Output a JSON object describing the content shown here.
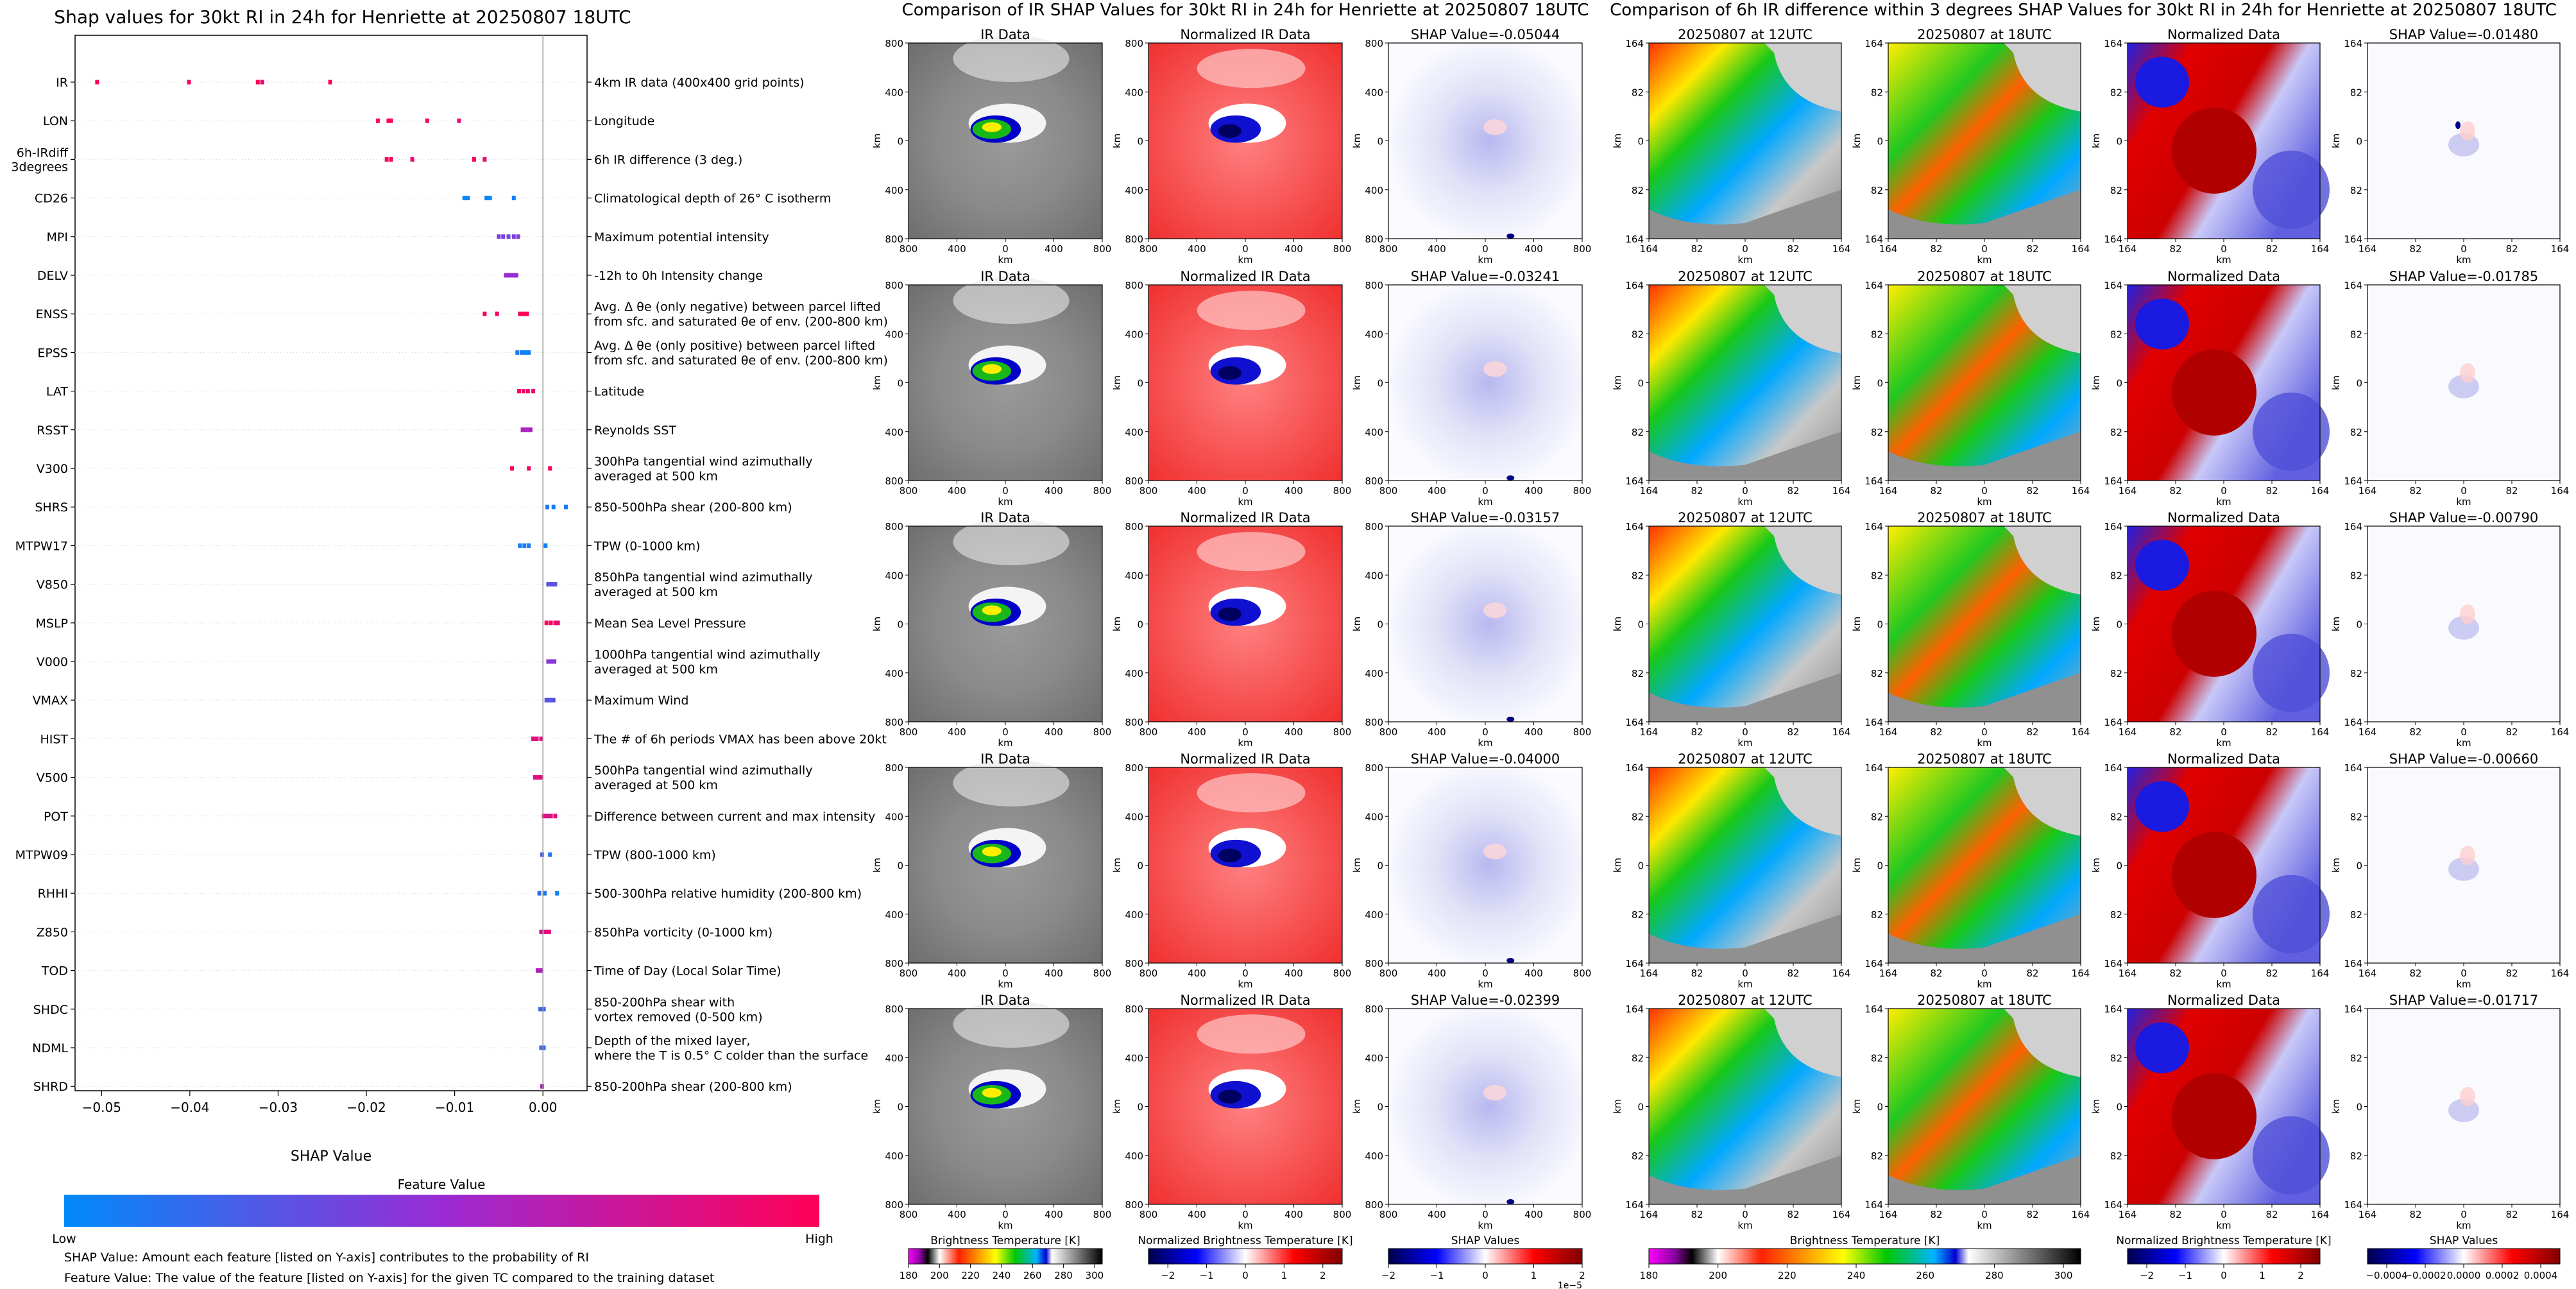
{
  "left_title": "Shap values for 30kt RI in 24h for Henriette at 20250807 18UTC",
  "ir_title": "Comparison of IR SHAP Values for 30kt RI in 24h for Henriette at 20250807 18UTC",
  "diff_title": "Comparison of 6h IR difference within 3 degrees SHAP Values for 30kt RI in 24h for Henriette at 20250807 18UTC",
  "colorbar": {
    "title": "Feature Value",
    "low": "Low",
    "high": "High",
    "low_color": "#008afa",
    "mid_color": "#9a2bd4",
    "high_color": "#ff0057"
  },
  "notes": [
    "SHAP Value: Amount each feature [listed on Y-axis] contributes to the probability of RI",
    "Feature Value: The value of the feature [listed on Y-axis] for the given TC compared to the training dataset"
  ],
  "chart_data": {
    "type": "scatter",
    "title": "Shap values for 30kt RI in 24h for Henriette at 20250807 18UTC",
    "xlabel": "SHAP Value",
    "xlim": [
      -0.053,
      0.005
    ],
    "xticks": [
      -0.05,
      -0.04,
      -0.03,
      -0.02,
      -0.01,
      0.0
    ],
    "xtick_labels": [
      "−0.05",
      "−0.04",
      "−0.03",
      "−0.02",
      "−0.01",
      "0.00"
    ],
    "features": [
      {
        "name": "IR",
        "desc": [
          "4km IR data (400x400 grid points)"
        ],
        "points": [
          [
            -0.0505,
            1
          ],
          [
            -0.0401,
            0.95
          ],
          [
            -0.0323,
            1
          ],
          [
            -0.0318,
            0.9
          ],
          [
            -0.0241,
            0.95
          ]
        ]
      },
      {
        "name": "LON",
        "desc": [
          "Longitude"
        ],
        "points": [
          [
            -0.0187,
            0.95
          ],
          [
            -0.0175,
            1
          ],
          [
            -0.0172,
            1
          ],
          [
            -0.0131,
            0.95
          ],
          [
            -0.0095,
            0.9
          ]
        ]
      },
      {
        "name": "6h-IRdiff\n3degrees",
        "desc": [
          "6h IR difference (3 deg.)"
        ],
        "points": [
          [
            -0.0177,
            0.95
          ],
          [
            -0.0172,
            1
          ],
          [
            -0.0148,
            0.9
          ],
          [
            -0.0078,
            1
          ],
          [
            -0.0066,
            0.9
          ]
        ]
      },
      {
        "name": "CD26",
        "desc": [
          "Climatological depth of 26° C isotherm"
        ],
        "points": [
          [
            -0.0089,
            0
          ],
          [
            -0.0085,
            0.05
          ],
          [
            -0.0064,
            0.05
          ],
          [
            -0.006,
            0
          ],
          [
            -0.0033,
            0.05
          ]
        ]
      },
      {
        "name": "MPI",
        "desc": [
          "Maximum potential intensity"
        ],
        "points": [
          [
            -0.005,
            0.4
          ],
          [
            -0.0045,
            0.4
          ],
          [
            -0.0039,
            0.35
          ],
          [
            -0.0033,
            0.4
          ],
          [
            -0.0028,
            0.4
          ]
        ]
      },
      {
        "name": "DELV",
        "desc": [
          "-12h to 0h Intensity change"
        ],
        "points": [
          [
            -0.0042,
            0.5
          ],
          [
            -0.0038,
            0.5
          ],
          [
            -0.0034,
            0.5
          ],
          [
            -0.003,
            0.5
          ]
        ]
      },
      {
        "name": "ENSS",
        "desc": [
          "Avg. Δ θe (only negative) between parcel lifted",
          "from sfc. and saturated θe of env. (200-800 km)"
        ],
        "points": [
          [
            -0.0066,
            1
          ],
          [
            -0.0052,
            0.95
          ],
          [
            -0.0026,
            0.95
          ],
          [
            -0.0022,
            1
          ],
          [
            -0.0018,
            1
          ]
        ]
      },
      {
        "name": "EPSS",
        "desc": [
          "Avg. Δ θe (only positive) between parcel lifted",
          "from sfc. and saturated θe of env. (200-800 km)"
        ],
        "points": [
          [
            -0.0029,
            0.1
          ],
          [
            -0.0024,
            0.1
          ],
          [
            -0.002,
            0
          ],
          [
            -0.0016,
            0.05
          ]
        ]
      },
      {
        "name": "LAT",
        "desc": [
          "Latitude"
        ],
        "points": [
          [
            -0.0027,
            1
          ],
          [
            -0.0022,
            0.95
          ],
          [
            -0.0017,
            0.9
          ],
          [
            -0.0011,
            0.95
          ]
        ]
      },
      {
        "name": "RSST",
        "desc": [
          "Reynolds SST"
        ],
        "points": [
          [
            -0.0023,
            0.6
          ],
          [
            -0.002,
            0.6
          ],
          [
            -0.0017,
            0.55
          ],
          [
            -0.0014,
            0.6
          ]
        ]
      },
      {
        "name": "V300",
        "desc": [
          "300hPa tangential wind azimuthally",
          "averaged at 500 km"
        ],
        "points": [
          [
            -0.0035,
            1
          ],
          [
            -0.0016,
            0.95
          ],
          [
            0.0008,
            1
          ]
        ]
      },
      {
        "name": "SHRS",
        "desc": [
          "850-500hPa shear (200-800 km)"
        ],
        "points": [
          [
            0.0005,
            0.1
          ],
          [
            0.0012,
            0.05
          ],
          [
            0.0026,
            0.1
          ]
        ]
      },
      {
        "name": "MTPW17",
        "desc": [
          "TPW (0-1000 km)"
        ],
        "points": [
          [
            -0.0026,
            0.05
          ],
          [
            -0.0021,
            0.05
          ],
          [
            -0.0016,
            0.1
          ],
          [
            0.0003,
            0.05
          ]
        ]
      },
      {
        "name": "V850",
        "desc": [
          "850hPa tangential wind azimuthally",
          "averaged at 500 km"
        ],
        "points": [
          [
            0.0006,
            0.3
          ],
          [
            0.001,
            0.3
          ],
          [
            0.0014,
            0.3
          ]
        ]
      },
      {
        "name": "MSLP",
        "desc": [
          "Mean Sea Level Pressure"
        ],
        "points": [
          [
            0.0004,
            1
          ],
          [
            0.0009,
            0.95
          ],
          [
            0.0014,
            0.9
          ],
          [
            0.0017,
            0.9
          ]
        ]
      },
      {
        "name": "V000",
        "desc": [
          "1000hPa tangential wind azimuthally",
          "averaged at 500 km"
        ],
        "points": [
          [
            0.0006,
            0.45
          ],
          [
            0.001,
            0.45
          ],
          [
            0.0013,
            0.45
          ]
        ]
      },
      {
        "name": "VMAX",
        "desc": [
          "Maximum Wind"
        ],
        "points": [
          [
            0.0004,
            0.3
          ],
          [
            0.0008,
            0.25
          ],
          [
            0.0012,
            0.3
          ]
        ]
      },
      {
        "name": "HIST",
        "desc": [
          "The # of 6h periods VMAX has been above 20kt"
        ],
        "points": [
          [
            -0.0011,
            0.85
          ],
          [
            -0.0007,
            0.85
          ],
          [
            -0.0002,
            0.8
          ]
        ]
      },
      {
        "name": "V500",
        "desc": [
          "500hPa tangential wind azimuthally",
          "averaged at 500 km"
        ],
        "points": [
          [
            -0.0009,
            0.85
          ],
          [
            -0.0005,
            0.85
          ],
          [
            -0.0002,
            0.85
          ]
        ]
      },
      {
        "name": "POT",
        "desc": [
          "Difference between current and max intensity"
        ],
        "points": [
          [
            0.0001,
            0.85
          ],
          [
            0.0005,
            0.8
          ],
          [
            0.0009,
            0.9
          ],
          [
            0.0014,
            0.85
          ]
        ]
      },
      {
        "name": "MTPW09",
        "desc": [
          "TPW (800-1000 km)"
        ],
        "points": [
          [
            -0.0001,
            0.2
          ],
          [
            0.0008,
            0.1
          ]
        ]
      },
      {
        "name": "RHHI",
        "desc": [
          "500-300hPa relative humidity (200-800 km)"
        ],
        "points": [
          [
            -0.0004,
            0.15
          ],
          [
            0.0002,
            0.1
          ],
          [
            0.0016,
            0.05
          ]
        ]
      },
      {
        "name": "Z850",
        "desc": [
          "850hPa vorticity (0-1000 km)"
        ],
        "points": [
          [
            -0.0002,
            0.8
          ],
          [
            0.0003,
            0.85
          ],
          [
            0.0007,
            0.85
          ]
        ]
      },
      {
        "name": "TOD",
        "desc": [
          "Time of Day (Local Solar Time)"
        ],
        "points": [
          [
            -0.0006,
            0.6
          ],
          [
            -0.0002,
            0.6
          ]
        ]
      },
      {
        "name": "SHDC",
        "desc": [
          "850-200hPa shear with",
          "vortex removed (0-500 km)"
        ],
        "points": [
          [
            -0.0003,
            0.2
          ],
          [
            0.0001,
            0.2
          ]
        ]
      },
      {
        "name": "NDML",
        "desc": [
          "Depth of the mixed layer,",
          "where the T is 0.5° C colder than the surface"
        ],
        "points": [
          [
            -0.0002,
            0.2
          ],
          [
            0.0001,
            0.2
          ]
        ]
      },
      {
        "name": "SHRD",
        "desc": [
          "850-200hPa shear (200-800 km)"
        ],
        "points": [
          [
            -0.0001,
            0.6
          ]
        ]
      }
    ]
  },
  "ir_panels": {
    "col_titles": [
      "IR Data",
      "Normalized IR Data"
    ],
    "shap_values": [
      "SHAP Value=-0.05044",
      "SHAP Value=-0.03241",
      "SHAP Value=-0.03157",
      "SHAP Value=-0.04000",
      "SHAP Value=-0.02399"
    ],
    "yticks": [
      "800",
      "400",
      "0",
      "400",
      "800"
    ],
    "xticks": [
      "800",
      "400",
      "0",
      "400",
      "800"
    ],
    "axis_label": "km"
  },
  "diff_panels": {
    "col_titles": [
      "20250807 at 12UTC",
      "20250807 at 18UTC",
      "Normalized Data"
    ],
    "shap_values": [
      "SHAP Value=-0.01480",
      "SHAP Value=-0.01785",
      "SHAP Value=-0.00790",
      "SHAP Value=-0.00660",
      "SHAP Value=-0.01717"
    ],
    "yticks": [
      "164",
      "82",
      "0",
      "82",
      "164"
    ],
    "xticks": [
      "164",
      "82",
      "0",
      "82",
      "164"
    ],
    "axis_label": "km"
  },
  "colorbars": [
    {
      "label": "Brightness Temperature [K]",
      "ticks": [
        "180",
        "200",
        "220",
        "240",
        "260",
        "280",
        "300"
      ],
      "offset": ""
    },
    {
      "label": "Normalized Brightness Temperature [K]",
      "ticks": [
        "−2",
        "−1",
        "0",
        "1",
        "2"
      ],
      "offset": ""
    },
    {
      "label": "SHAP Values",
      "ticks": [
        "−2",
        "−1",
        "0",
        "1",
        "2"
      ],
      "offset": "1e−5"
    },
    {
      "label": "Brightness Temperature [K]",
      "ticks": [
        "180",
        "200",
        "220",
        "240",
        "260",
        "280",
        "300"
      ],
      "offset": ""
    },
    {
      "label": "Normalized Brightness Temperature [K]",
      "ticks": [
        "−2",
        "−1",
        "0",
        "1",
        "2"
      ],
      "offset": ""
    },
    {
      "label": "SHAP Values",
      "ticks": [
        "−0.0004",
        "−0.0002",
        "0.0000",
        "0.0002",
        "0.0004"
      ],
      "offset": ""
    }
  ]
}
